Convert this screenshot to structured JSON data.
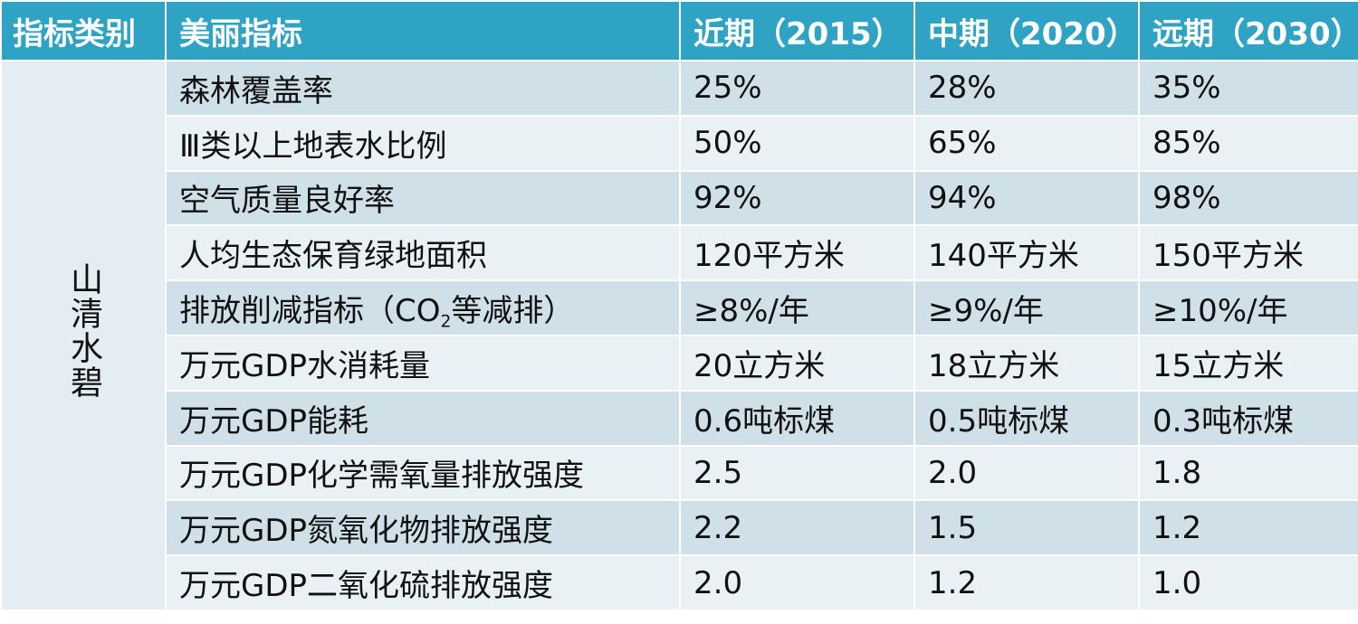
{
  "table": {
    "headers": [
      "指标类别",
      "美丽指标",
      "近期（2015）",
      "中期（2020）",
      "远期（2030）"
    ],
    "category": "山清水碧",
    "rows": [
      {
        "indicator": "森林覆盖率",
        "near": "25%",
        "mid": "28%",
        "far": "35%"
      },
      {
        "indicator": "Ⅲ类以上地表水比例",
        "near": "50%",
        "mid": "65%",
        "far": "85%"
      },
      {
        "indicator": "空气质量良好率",
        "near": "92%",
        "mid": "94%",
        "far": "98%"
      },
      {
        "indicator": "人均生态保育绿地面积",
        "near": "120平方米",
        "mid": "140平方米",
        "far": "150平方米"
      },
      {
        "indicator_pre": "排放削减指标（CO",
        "indicator_sub": "2",
        "indicator_post": "等减排）",
        "near": "≥8%/年",
        "mid": "≥9%/年",
        "far": "≥10%/年"
      },
      {
        "indicator": "万元GDP水消耗量",
        "near": "20立方米",
        "mid": "18立方米",
        "far": "15立方米"
      },
      {
        "indicator": "万元GDP能耗",
        "near": "0.6吨标煤",
        "mid": "0.5吨标煤",
        "far": "0.3吨标煤"
      },
      {
        "indicator": "万元GDP化学需氧量排放强度",
        "near": "2.5",
        "mid": "2.0",
        "far": "1.8"
      },
      {
        "indicator": "万元GDP氮氧化物排放强度",
        "near": "2.2",
        "mid": "1.5",
        "far": "1.2"
      },
      {
        "indicator": "万元GDP二氧化硫排放强度",
        "near": "2.0",
        "mid": "1.2",
        "far": "1.0"
      }
    ]
  },
  "colors": {
    "header_bg": "#2fa3c4",
    "row_dark": "#cfe0e8",
    "row_light": "#e9f1f4",
    "category_bg": "#e3edf2"
  }
}
